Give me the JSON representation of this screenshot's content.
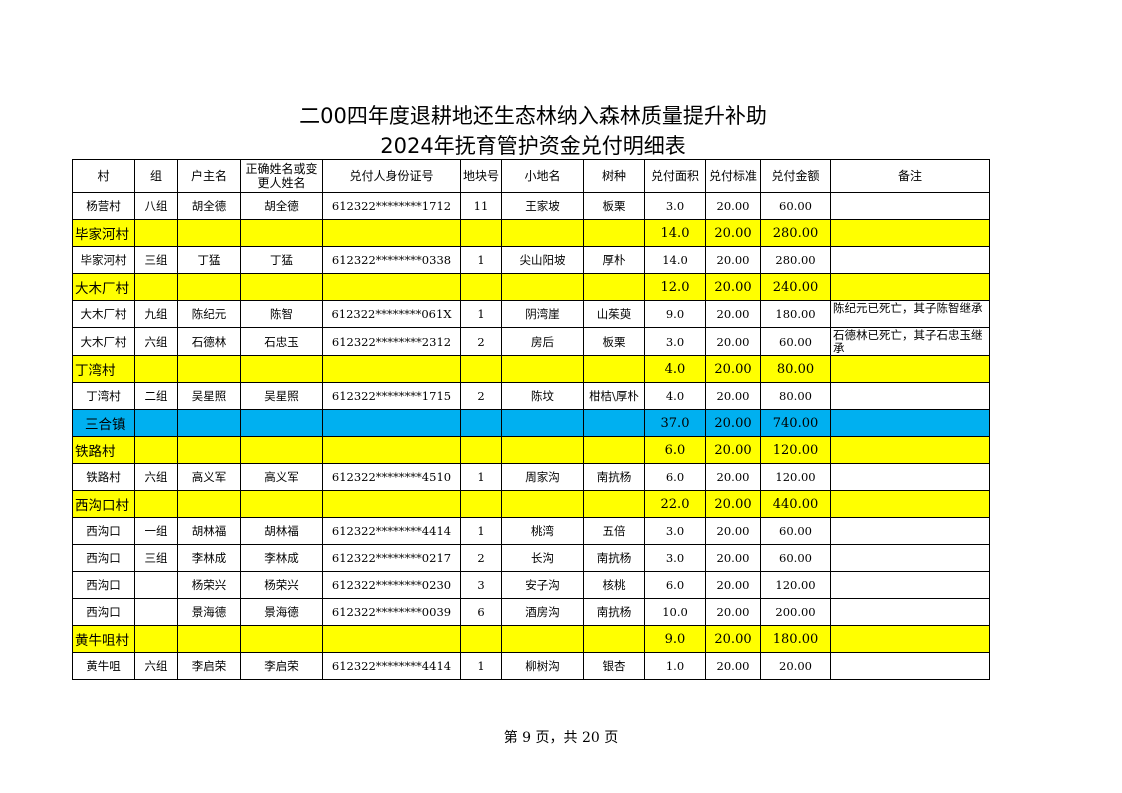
{
  "title": {
    "line1": "二00四年度退耕地还生态林纳入森林质量提升补助",
    "line2": "2024年抚育管护资金兑付明细表"
  },
  "table": {
    "headers": [
      "村",
      "组",
      "户主名",
      "正确姓名或变更人姓名",
      "兑付人身份证号",
      "地块号",
      "小地名",
      "树种",
      "兑付面积",
      "兑付标准",
      "兑付金额",
      "备注"
    ],
    "rows": [
      {
        "type": "data",
        "cells": [
          "杨营村",
          "八组",
          "胡全德",
          "胡全德",
          "612322********1712",
          "11",
          "王家坡",
          "板栗",
          "3.0",
          "20.00",
          "60.00",
          ""
        ]
      },
      {
        "type": "village",
        "cells": [
          "毕家河村",
          "",
          "",
          "",
          "",
          "",
          "",
          "",
          "14.0",
          "20.00",
          "280.00",
          ""
        ]
      },
      {
        "type": "data",
        "cells": [
          "毕家河村",
          "三组",
          "丁猛",
          "丁猛",
          "612322********0338",
          "1",
          "尖山阳坡",
          "厚朴",
          "14.0",
          "20.00",
          "280.00",
          ""
        ]
      },
      {
        "type": "village",
        "cells": [
          "大木厂村",
          "",
          "",
          "",
          "",
          "",
          "",
          "",
          "12.0",
          "20.00",
          "240.00",
          ""
        ]
      },
      {
        "type": "data",
        "cells": [
          "大木厂村",
          "九组",
          "陈纪元",
          "陈智",
          "612322********061X",
          "1",
          "阴湾崖",
          "山茱萸",
          "9.0",
          "20.00",
          "180.00",
          "陈纪元已死亡，其子陈智继承"
        ]
      },
      {
        "type": "data",
        "cells": [
          "大木厂村",
          "六组",
          "石德林",
          "石忠玉",
          "612322********2312",
          "2",
          "房后",
          "板栗",
          "3.0",
          "20.00",
          "60.00",
          "石德林已死亡，其子石忠玉继承"
        ]
      },
      {
        "type": "village",
        "cells": [
          "丁湾村",
          "",
          "",
          "",
          "",
          "",
          "",
          "",
          "4.0",
          "20.00",
          "80.00",
          ""
        ]
      },
      {
        "type": "data",
        "cells": [
          "丁湾村",
          "二组",
          "吴星照",
          "吴星照",
          "612322********1715",
          "2",
          "陈坟",
          "柑桔\\厚朴",
          "4.0",
          "20.00",
          "80.00",
          ""
        ]
      },
      {
        "type": "town",
        "cells": [
          "三合镇",
          "",
          "",
          "",
          "",
          "",
          "",
          "",
          "37.0",
          "20.00",
          "740.00",
          ""
        ]
      },
      {
        "type": "village",
        "cells": [
          "铁路村",
          "",
          "",
          "",
          "",
          "",
          "",
          "",
          "6.0",
          "20.00",
          "120.00",
          ""
        ]
      },
      {
        "type": "data",
        "cells": [
          "铁路村",
          "六组",
          "高义军",
          "高义军",
          "612322********4510",
          "1",
          "周家沟",
          "南抗杨",
          "6.0",
          "20.00",
          "120.00",
          ""
        ]
      },
      {
        "type": "village",
        "cells": [
          "西沟口村",
          "",
          "",
          "",
          "",
          "",
          "",
          "",
          "22.0",
          "20.00",
          "440.00",
          ""
        ]
      },
      {
        "type": "data",
        "cells": [
          "西沟口",
          "一组",
          "胡林福",
          "胡林福",
          "612322********4414",
          "1",
          "桃湾",
          "五倍",
          "3.0",
          "20.00",
          "60.00",
          ""
        ]
      },
      {
        "type": "data",
        "cells": [
          "西沟口",
          "三组",
          "李林成",
          "李林成",
          "612322********0217",
          "2",
          "长沟",
          "南抗杨",
          "3.0",
          "20.00",
          "60.00",
          ""
        ]
      },
      {
        "type": "data",
        "cells": [
          "西沟口",
          "",
          "杨荣兴",
          "杨荣兴",
          "612322********0230",
          "3",
          "安子沟",
          "核桃",
          "6.0",
          "20.00",
          "120.00",
          ""
        ]
      },
      {
        "type": "data",
        "cells": [
          "西沟口",
          "",
          "景海德",
          "景海德",
          "612322********0039",
          "6",
          "酒房沟",
          "南抗杨",
          "10.0",
          "20.00",
          "200.00",
          ""
        ]
      },
      {
        "type": "village",
        "cells": [
          "黄牛咀村",
          "",
          "",
          "",
          "",
          "",
          "",
          "",
          "9.0",
          "20.00",
          "180.00",
          ""
        ]
      },
      {
        "type": "data",
        "cells": [
          "黄牛咀",
          "六组",
          "李启荣",
          "李启荣",
          "612322********4414",
          "1",
          "柳树沟",
          "银杏",
          "1.0",
          "20.00",
          "20.00",
          ""
        ]
      }
    ]
  },
  "colors": {
    "village_row": "#ffff00",
    "town_row": "#00b0f0"
  },
  "footer": "第 9 页，共 20 页"
}
